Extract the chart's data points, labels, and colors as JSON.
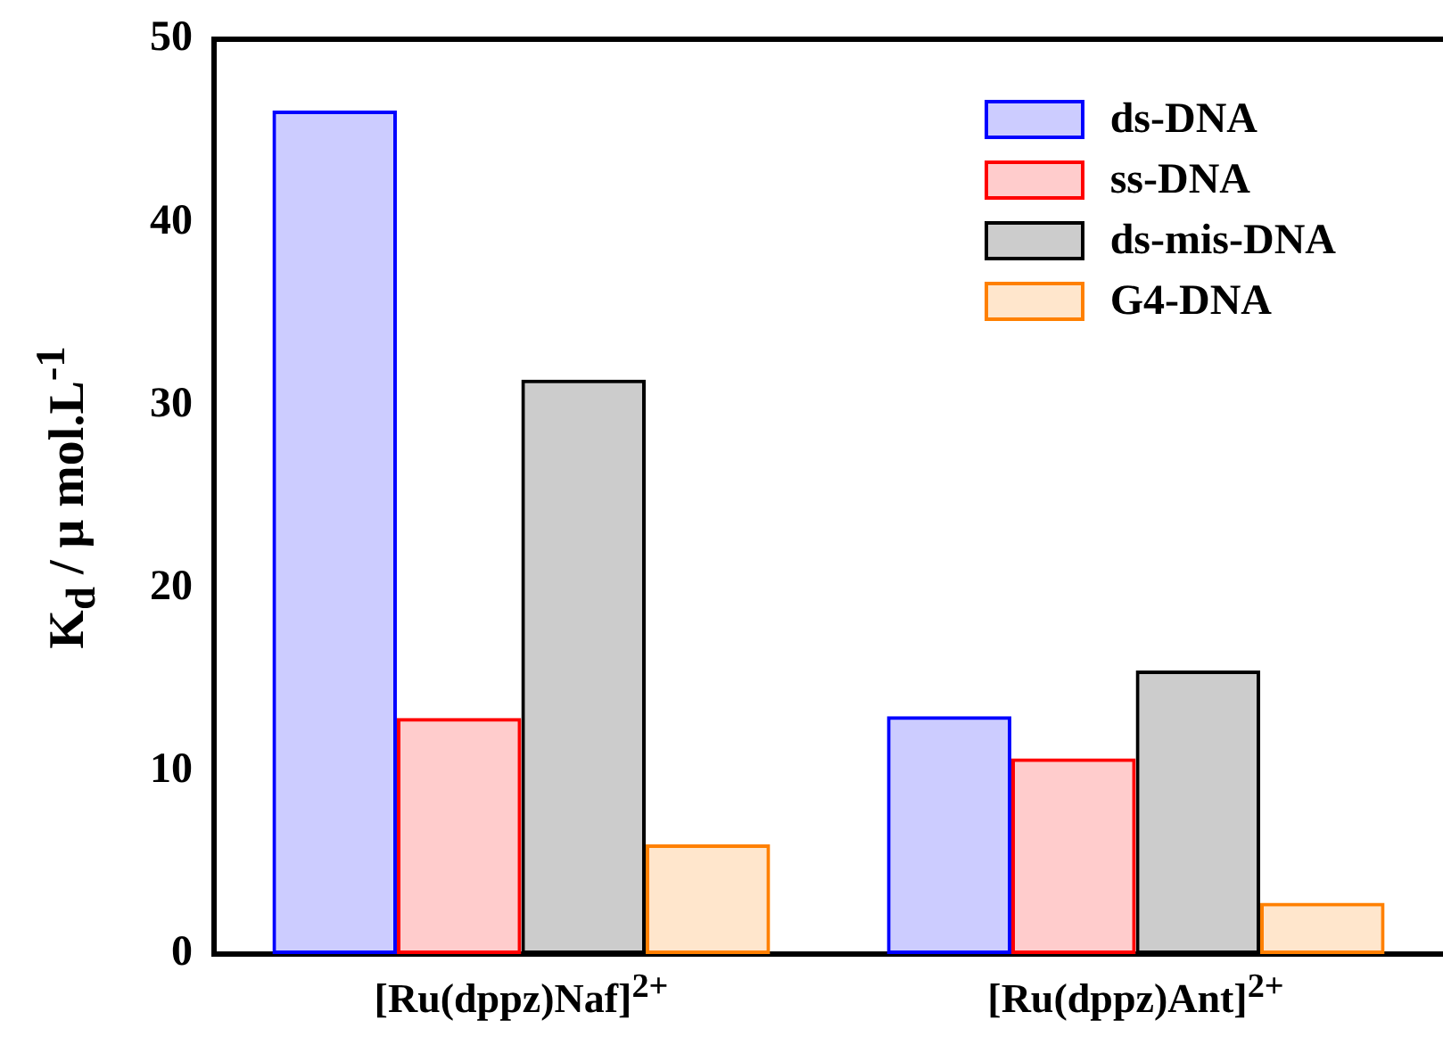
{
  "chart_data": {
    "type": "bar",
    "ylabel": "K$_{d}$ / μ mol.L$^{-1}$",
    "categories": [
      "[Ru(dppz)Naf]$^{2+}$",
      "[Ru(dppz)Ant]$^{2+}$"
    ],
    "series": [
      {
        "name": "ds-DNA",
        "color": "#0000ff",
        "values": [
          46.1,
          13.0
        ]
      },
      {
        "name": "ss-DNA",
        "color": "#ff0000",
        "values": [
          12.9,
          10.7
        ]
      },
      {
        "name": "ds-mis-DNA",
        "color": "#000000",
        "values": [
          31.4,
          15.5
        ]
      },
      {
        "name": "G4-DNA",
        "color": "#ff8000",
        "values": [
          6.0,
          2.8
        ]
      }
    ],
    "ylim": [
      0,
      50
    ],
    "yticks": [
      0,
      10,
      20,
      30,
      40,
      50
    ],
    "grid": false,
    "legend": "top right"
  }
}
